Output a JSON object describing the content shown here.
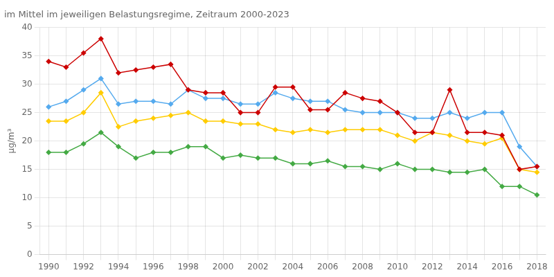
{
  "chart_data": {
    "type": "line",
    "title": "im Mittel im jeweiligen Belastungsregime, Zeitraum 2000-2023",
    "y_label": "µg/m³",
    "categories": [
      "1990",
      null,
      "1992",
      null,
      "1994",
      null,
      "1996",
      null,
      "1998",
      null,
      "2000",
      null,
      "2002",
      null,
      "2004",
      null,
      "2006",
      null,
      "2008",
      null,
      "2010",
      null,
      "2012",
      null,
      "2014",
      null,
      "2016",
      null,
      "2018"
    ],
    "series": [
      {
        "color": "#cc0000",
        "marker": "diamond",
        "values": [
          34.0,
          33.0,
          35.5,
          38.0,
          32.0,
          32.5,
          33.0,
          33.5,
          29.0,
          28.5,
          28.5,
          25.0,
          25.0,
          29.5,
          29.5,
          25.5,
          25.5,
          28.5,
          27.5,
          27.0,
          25.0,
          21.5,
          21.5,
          29.0,
          21.5,
          21.5,
          21.0,
          15.0,
          15.5
        ]
      },
      {
        "color": "#55aaee",
        "marker": "diamond",
        "values": [
          26.0,
          27.0,
          29.0,
          31.0,
          26.5,
          27.0,
          27.0,
          26.5,
          29.0,
          27.5,
          27.5,
          26.5,
          26.5,
          28.5,
          27.5,
          27.0,
          27.0,
          25.5,
          25.0,
          25.0,
          25.0,
          24.0,
          24.0,
          25.0,
          24.0,
          25.0,
          25.0,
          19.0,
          15.5
        ]
      },
      {
        "color": "#ffcc00",
        "marker": "diamond",
        "values": [
          23.5,
          23.5,
          25.0,
          28.5,
          22.5,
          23.5,
          24.0,
          24.5,
          25.0,
          23.5,
          23.5,
          23.0,
          23.0,
          22.0,
          21.5,
          22.0,
          21.5,
          22.0,
          22.0,
          22.0,
          21.0,
          20.0,
          21.5,
          21.0,
          20.0,
          19.5,
          20.5,
          15.0,
          14.5
        ]
      },
      {
        "color": "#44aa44",
        "marker": "diamond",
        "values": [
          18.0,
          18.0,
          19.5,
          21.5,
          19.0,
          17.0,
          18.0,
          18.0,
          19.0,
          19.0,
          17.0,
          17.5,
          17.0,
          17.0,
          16.0,
          16.0,
          16.5,
          15.5,
          15.5,
          15.0,
          16.0,
          15.0,
          15.0,
          14.5,
          14.5,
          15.0,
          12.0,
          12.0,
          10.5
        ]
      }
    ],
    "ylim": [
      0,
      40
    ],
    "yticks": [
      0,
      5,
      10,
      15,
      20,
      25,
      30,
      35,
      40
    ],
    "grid": true
  }
}
